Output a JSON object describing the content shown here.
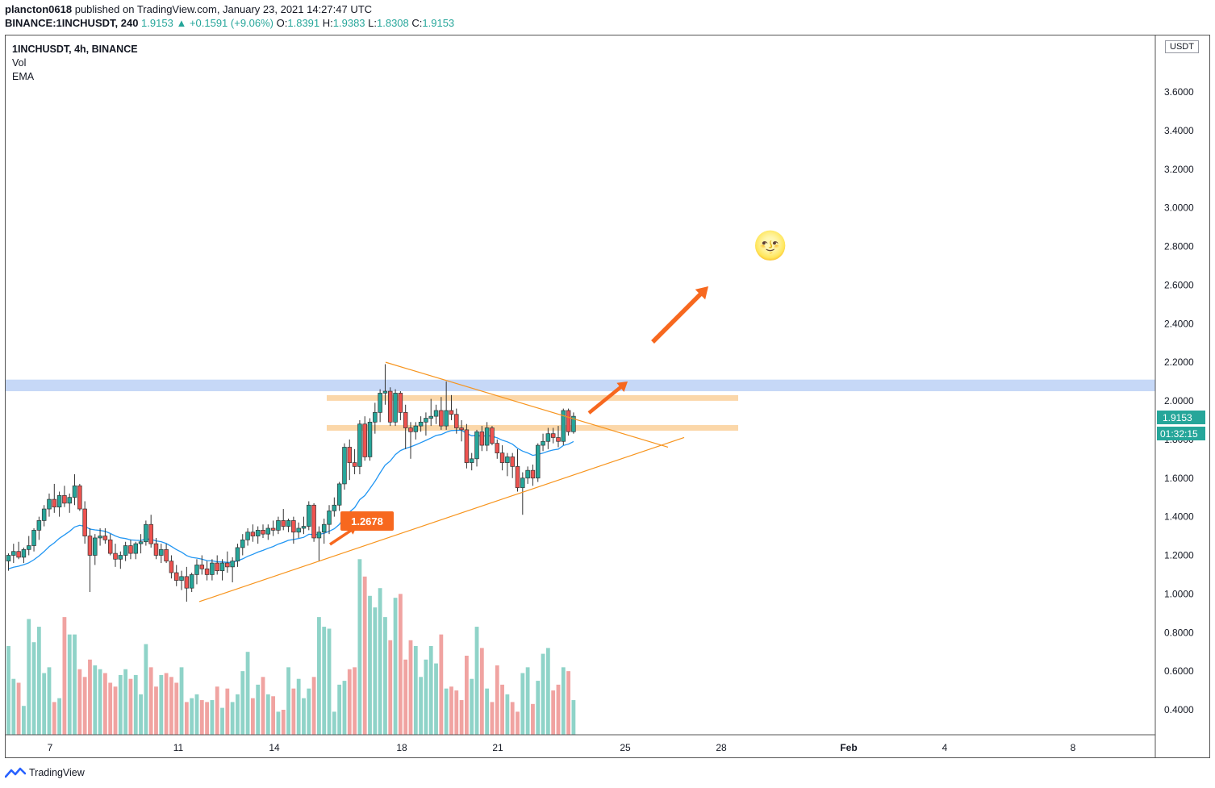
{
  "header": {
    "author": "plancton0618",
    "published_text": "published on TradingView.com, January 23, 2021 14:27:47 UTC",
    "symbol_line": "BINANCE:1INCHUSDT, 240",
    "last": "1.9153",
    "change": "+0.1591 (+9.06%)",
    "open_label": "O:",
    "open": "1.8391",
    "high_label": "H:",
    "high": "1.9383",
    "low_label": "L:",
    "low": "1.8308",
    "close_label": "C:",
    "close": "1.9153"
  },
  "legend": {
    "symbol": "1INCHUSDT, 4h, BINANCE",
    "vol": "Vol",
    "ema": "EMA"
  },
  "price_axis": {
    "unit": "USDT",
    "last_price_label": "1.9153",
    "countdown": "01:32:15"
  },
  "callout": {
    "text": "1.2678"
  },
  "emoji": "🌝",
  "footer": {
    "brand": "TradingView"
  },
  "colors": {
    "up": "#26a69a",
    "down": "#ef5350",
    "vol_up": "#8fd3c8",
    "vol_down": "#f0a3a1",
    "ema": "#2196f3",
    "trend": "#f7941d",
    "zone": "#fbd3a0",
    "resistance": "#c6d8f7",
    "arrow": "#f7681f"
  },
  "chart_data": {
    "type": "candlestick",
    "timeframe": "4h",
    "x_ticks": [
      "7",
      "11",
      "14",
      "18",
      "21",
      "25",
      "28",
      "Feb",
      "4",
      "8"
    ],
    "y_ticks": [
      "0.4000",
      "0.6000",
      "0.8000",
      "1.0000",
      "1.2000",
      "1.4000",
      "1.6000",
      "1.8000",
      "2.0000",
      "2.2000",
      "2.4000",
      "2.6000",
      "2.8000",
      "3.0000",
      "3.2000",
      "3.4000",
      "3.6000"
    ],
    "ylim": [
      0.27,
      3.76
    ],
    "candles": [
      {
        "o": 1.17,
        "h": 1.21,
        "l": 1.12,
        "c": 1.2
      },
      {
        "o": 1.2,
        "h": 1.26,
        "l": 1.16,
        "c": 1.22
      },
      {
        "o": 1.22,
        "h": 1.27,
        "l": 1.18,
        "c": 1.19
      },
      {
        "o": 1.19,
        "h": 1.24,
        "l": 1.16,
        "c": 1.23
      },
      {
        "o": 1.23,
        "h": 1.3,
        "l": 1.2,
        "c": 1.25
      },
      {
        "o": 1.25,
        "h": 1.34,
        "l": 1.22,
        "c": 1.33
      },
      {
        "o": 1.33,
        "h": 1.4,
        "l": 1.28,
        "c": 1.38
      },
      {
        "o": 1.38,
        "h": 1.46,
        "l": 1.35,
        "c": 1.44
      },
      {
        "o": 1.44,
        "h": 1.52,
        "l": 1.4,
        "c": 1.49
      },
      {
        "o": 1.49,
        "h": 1.57,
        "l": 1.42,
        "c": 1.45
      },
      {
        "o": 1.45,
        "h": 1.53,
        "l": 1.4,
        "c": 1.51
      },
      {
        "o": 1.51,
        "h": 1.56,
        "l": 1.45,
        "c": 1.47
      },
      {
        "o": 1.47,
        "h": 1.52,
        "l": 1.42,
        "c": 1.5
      },
      {
        "o": 1.5,
        "h": 1.62,
        "l": 1.46,
        "c": 1.56
      },
      {
        "o": 1.56,
        "h": 1.57,
        "l": 1.43,
        "c": 1.44
      },
      {
        "o": 1.44,
        "h": 1.48,
        "l": 1.26,
        "c": 1.3
      },
      {
        "o": 1.3,
        "h": 1.34,
        "l": 1.01,
        "c": 1.2
      },
      {
        "o": 1.2,
        "h": 1.31,
        "l": 1.15,
        "c": 1.29
      },
      {
        "o": 1.29,
        "h": 1.34,
        "l": 1.25,
        "c": 1.3
      },
      {
        "o": 1.3,
        "h": 1.34,
        "l": 1.26,
        "c": 1.28
      },
      {
        "o": 1.28,
        "h": 1.31,
        "l": 1.2,
        "c": 1.21
      },
      {
        "o": 1.21,
        "h": 1.26,
        "l": 1.14,
        "c": 1.18
      },
      {
        "o": 1.18,
        "h": 1.22,
        "l": 1.13,
        "c": 1.2
      },
      {
        "o": 1.2,
        "h": 1.27,
        "l": 1.17,
        "c": 1.25
      },
      {
        "o": 1.25,
        "h": 1.28,
        "l": 1.18,
        "c": 1.21
      },
      {
        "o": 1.21,
        "h": 1.27,
        "l": 1.18,
        "c": 1.26
      },
      {
        "o": 1.26,
        "h": 1.31,
        "l": 1.21,
        "c": 1.27
      },
      {
        "o": 1.27,
        "h": 1.38,
        "l": 1.25,
        "c": 1.36
      },
      {
        "o": 1.36,
        "h": 1.41,
        "l": 1.24,
        "c": 1.26
      },
      {
        "o": 1.26,
        "h": 1.29,
        "l": 1.18,
        "c": 1.2
      },
      {
        "o": 1.2,
        "h": 1.26,
        "l": 1.16,
        "c": 1.23
      },
      {
        "o": 1.23,
        "h": 1.26,
        "l": 1.16,
        "c": 1.17
      },
      {
        "o": 1.17,
        "h": 1.2,
        "l": 1.08,
        "c": 1.11
      },
      {
        "o": 1.11,
        "h": 1.15,
        "l": 1.04,
        "c": 1.07
      },
      {
        "o": 1.07,
        "h": 1.12,
        "l": 1.02,
        "c": 1.09
      },
      {
        "o": 1.09,
        "h": 1.14,
        "l": 0.96,
        "c": 1.03
      },
      {
        "o": 1.03,
        "h": 1.11,
        "l": 1.01,
        "c": 1.1
      },
      {
        "o": 1.1,
        "h": 1.18,
        "l": 1.05,
        "c": 1.15
      },
      {
        "o": 1.15,
        "h": 1.2,
        "l": 1.1,
        "c": 1.13
      },
      {
        "o": 1.13,
        "h": 1.17,
        "l": 1.07,
        "c": 1.1
      },
      {
        "o": 1.1,
        "h": 1.18,
        "l": 1.07,
        "c": 1.16
      },
      {
        "o": 1.16,
        "h": 1.2,
        "l": 1.1,
        "c": 1.12
      },
      {
        "o": 1.12,
        "h": 1.18,
        "l": 1.07,
        "c": 1.16
      },
      {
        "o": 1.16,
        "h": 1.22,
        "l": 1.11,
        "c": 1.14
      },
      {
        "o": 1.14,
        "h": 1.19,
        "l": 1.06,
        "c": 1.17
      },
      {
        "o": 1.17,
        "h": 1.26,
        "l": 1.14,
        "c": 1.24
      },
      {
        "o": 1.24,
        "h": 1.31,
        "l": 1.2,
        "c": 1.28
      },
      {
        "o": 1.28,
        "h": 1.34,
        "l": 1.25,
        "c": 1.32
      },
      {
        "o": 1.32,
        "h": 1.36,
        "l": 1.27,
        "c": 1.3
      },
      {
        "o": 1.3,
        "h": 1.35,
        "l": 1.26,
        "c": 1.33
      },
      {
        "o": 1.33,
        "h": 1.36,
        "l": 1.29,
        "c": 1.31
      },
      {
        "o": 1.31,
        "h": 1.36,
        "l": 1.28,
        "c": 1.34
      },
      {
        "o": 1.34,
        "h": 1.38,
        "l": 1.3,
        "c": 1.33
      },
      {
        "o": 1.33,
        "h": 1.4,
        "l": 1.31,
        "c": 1.38
      },
      {
        "o": 1.38,
        "h": 1.44,
        "l": 1.33,
        "c": 1.35
      },
      {
        "o": 1.35,
        "h": 1.39,
        "l": 1.32,
        "c": 1.38
      },
      {
        "o": 1.38,
        "h": 1.4,
        "l": 1.26,
        "c": 1.32
      },
      {
        "o": 1.32,
        "h": 1.37,
        "l": 1.29,
        "c": 1.34
      },
      {
        "o": 1.34,
        "h": 1.4,
        "l": 1.31,
        "c": 1.35
      },
      {
        "o": 1.35,
        "h": 1.48,
        "l": 1.33,
        "c": 1.46
      },
      {
        "o": 1.46,
        "h": 1.47,
        "l": 1.27,
        "c": 1.29
      },
      {
        "o": 1.29,
        "h": 1.35,
        "l": 1.17,
        "c": 1.32
      },
      {
        "o": 1.32,
        "h": 1.39,
        "l": 1.26,
        "c": 1.36
      },
      {
        "o": 1.36,
        "h": 1.46,
        "l": 1.31,
        "c": 1.43
      },
      {
        "o": 1.43,
        "h": 1.5,
        "l": 1.4,
        "c": 1.46
      },
      {
        "o": 1.46,
        "h": 1.58,
        "l": 1.43,
        "c": 1.57
      },
      {
        "o": 1.57,
        "h": 1.78,
        "l": 1.54,
        "c": 1.76
      },
      {
        "o": 1.76,
        "h": 1.8,
        "l": 1.59,
        "c": 1.68
      },
      {
        "o": 1.68,
        "h": 1.75,
        "l": 1.62,
        "c": 1.66
      },
      {
        "o": 1.66,
        "h": 1.9,
        "l": 1.62,
        "c": 1.88
      },
      {
        "o": 1.88,
        "h": 1.92,
        "l": 1.69,
        "c": 1.71
      },
      {
        "o": 1.71,
        "h": 1.91,
        "l": 1.69,
        "c": 1.89
      },
      {
        "o": 1.89,
        "h": 1.99,
        "l": 1.83,
        "c": 1.94
      },
      {
        "o": 1.94,
        "h": 2.06,
        "l": 1.89,
        "c": 2.04
      },
      {
        "o": 2.04,
        "h": 2.19,
        "l": 1.98,
        "c": 2.05
      },
      {
        "o": 2.05,
        "h": 2.07,
        "l": 1.87,
        "c": 1.89
      },
      {
        "o": 1.89,
        "h": 2.06,
        "l": 1.87,
        "c": 2.04
      },
      {
        "o": 2.04,
        "h": 2.05,
        "l": 1.9,
        "c": 1.94
      },
      {
        "o": 1.94,
        "h": 1.98,
        "l": 1.75,
        "c": 1.86
      },
      {
        "o": 1.86,
        "h": 1.89,
        "l": 1.7,
        "c": 1.84
      },
      {
        "o": 1.84,
        "h": 1.89,
        "l": 1.8,
        "c": 1.87
      },
      {
        "o": 1.87,
        "h": 1.92,
        "l": 1.84,
        "c": 1.89
      },
      {
        "o": 1.89,
        "h": 1.94,
        "l": 1.82,
        "c": 1.91
      },
      {
        "o": 1.91,
        "h": 2.01,
        "l": 1.87,
        "c": 1.92
      },
      {
        "o": 1.92,
        "h": 1.98,
        "l": 1.88,
        "c": 1.95
      },
      {
        "o": 1.95,
        "h": 2.02,
        "l": 1.85,
        "c": 1.87
      },
      {
        "o": 1.87,
        "h": 2.1,
        "l": 1.85,
        "c": 1.95
      },
      {
        "o": 1.95,
        "h": 2.03,
        "l": 1.9,
        "c": 1.93
      },
      {
        "o": 1.93,
        "h": 1.96,
        "l": 1.83,
        "c": 1.86
      },
      {
        "o": 1.86,
        "h": 1.9,
        "l": 1.79,
        "c": 1.85
      },
      {
        "o": 1.85,
        "h": 1.88,
        "l": 1.65,
        "c": 1.68
      },
      {
        "o": 1.68,
        "h": 1.73,
        "l": 1.64,
        "c": 1.7
      },
      {
        "o": 1.7,
        "h": 1.85,
        "l": 1.66,
        "c": 1.84
      },
      {
        "o": 1.84,
        "h": 1.87,
        "l": 1.74,
        "c": 1.77
      },
      {
        "o": 1.77,
        "h": 1.89,
        "l": 1.74,
        "c": 1.86
      },
      {
        "o": 1.86,
        "h": 1.87,
        "l": 1.77,
        "c": 1.78
      },
      {
        "o": 1.78,
        "h": 1.8,
        "l": 1.7,
        "c": 1.73
      },
      {
        "o": 1.73,
        "h": 1.77,
        "l": 1.64,
        "c": 1.68
      },
      {
        "o": 1.68,
        "h": 1.73,
        "l": 1.61,
        "c": 1.71
      },
      {
        "o": 1.71,
        "h": 1.73,
        "l": 1.6,
        "c": 1.66
      },
      {
        "o": 1.66,
        "h": 1.75,
        "l": 1.53,
        "c": 1.55
      },
      {
        "o": 1.55,
        "h": 1.63,
        "l": 1.41,
        "c": 1.6
      },
      {
        "o": 1.6,
        "h": 1.66,
        "l": 1.57,
        "c": 1.64
      },
      {
        "o": 1.64,
        "h": 1.67,
        "l": 1.56,
        "c": 1.6
      },
      {
        "o": 1.6,
        "h": 1.78,
        "l": 1.58,
        "c": 1.77
      },
      {
        "o": 1.77,
        "h": 1.83,
        "l": 1.74,
        "c": 1.79
      },
      {
        "o": 1.79,
        "h": 1.86,
        "l": 1.75,
        "c": 1.83
      },
      {
        "o": 1.83,
        "h": 1.86,
        "l": 1.78,
        "c": 1.81
      },
      {
        "o": 1.81,
        "h": 1.87,
        "l": 1.76,
        "c": 1.79
      },
      {
        "o": 1.79,
        "h": 1.96,
        "l": 1.77,
        "c": 1.95
      },
      {
        "o": 1.95,
        "h": 1.96,
        "l": 1.82,
        "c": 1.84
      },
      {
        "o": 1.84,
        "h": 1.94,
        "l": 1.83,
        "c": 1.92
      }
    ],
    "volume": [
      0.73,
      0.56,
      0.54,
      0.42,
      0.87,
      0.75,
      0.83,
      0.59,
      0.62,
      0.44,
      0.46,
      0.88,
      0.79,
      0.79,
      0.61,
      0.57,
      0.66,
      0.63,
      0.61,
      0.59,
      0.54,
      0.52,
      0.58,
      0.61,
      0.56,
      0.58,
      0.48,
      0.74,
      0.62,
      0.52,
      0.58,
      0.59,
      0.57,
      0.54,
      0.62,
      0.44,
      0.46,
      0.48,
      0.45,
      0.44,
      0.45,
      0.52,
      0.41,
      0.51,
      0.44,
      0.48,
      0.6,
      0.7,
      0.46,
      0.53,
      0.57,
      0.48,
      0.47,
      0.39,
      0.4,
      0.62,
      0.51,
      0.56,
      0.46,
      0.51,
      0.57,
      0.88,
      0.83,
      0.82,
      0.39,
      0.53,
      0.55,
      0.61,
      0.62,
      1.18,
      1.09,
      0.99,
      0.93,
      1.03,
      0.88,
      0.76,
      0.98,
      1.0,
      0.66,
      0.76,
      0.73,
      0.57,
      0.66,
      0.73,
      0.64,
      0.79,
      0.51,
      0.52,
      0.5,
      0.45,
      0.68,
      0.56,
      0.83,
      0.72,
      0.51,
      0.44,
      0.63,
      0.53,
      0.48,
      0.44,
      0.39,
      0.59,
      0.62,
      0.43,
      0.55,
      0.69,
      0.72,
      0.5,
      0.53,
      0.62,
      0.6,
      0.45
    ],
    "drawings": {
      "resistance_zone": [
        2.05,
        2.11
      ],
      "horizontal_zones": [
        2.015,
        1.86
      ],
      "descending_trendline": [
        [
          2.2
        ],
        [
          1.76
        ]
      ],
      "ascending_trendline": [
        [
          0.96
        ],
        [
          1.81
        ]
      ]
    }
  }
}
